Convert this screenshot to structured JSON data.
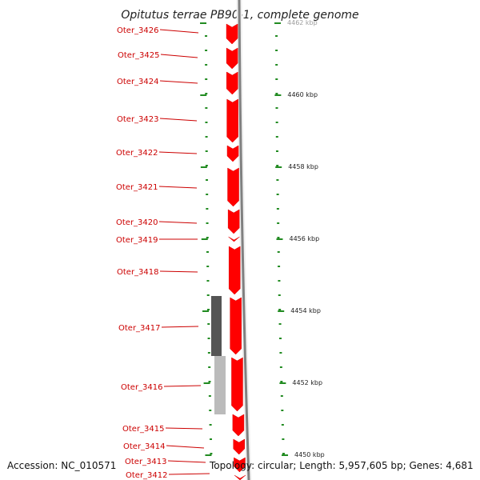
{
  "title": "Opitutus terrae PB90-1, complete genome",
  "footer": {
    "accession": "Accession: NC_010571",
    "topology": "Topology: circular; Length: 5,957,605 bp; Genes: 4,681"
  },
  "colors": {
    "gene": "#ff0000",
    "gene_label": "#cc0000",
    "tick": "#228b22",
    "backbone": "#808080",
    "gc_dark": "#555555",
    "gc_light": "#bbbbbb"
  },
  "genes": [
    {
      "name": "Oter_3426"
    },
    {
      "name": "Oter_3425"
    },
    {
      "name": "Oter_3424"
    },
    {
      "name": "Oter_3423"
    },
    {
      "name": "Oter_3422"
    },
    {
      "name": "Oter_3421"
    },
    {
      "name": "Oter_3420"
    },
    {
      "name": "Oter_3419"
    },
    {
      "name": "Oter_3418"
    },
    {
      "name": "Oter_3417"
    },
    {
      "name": "Oter_3416"
    },
    {
      "name": "Oter_3415"
    },
    {
      "name": "Oter_3414"
    },
    {
      "name": "Oter_3413"
    },
    {
      "name": "Oter_3412"
    }
  ],
  "kbp_ticks": [
    "4462 kbp",
    "4460 kbp",
    "4458 kbp",
    "4456 kbp",
    "4454 kbp",
    "4452 kbp",
    "4450 kbp"
  ]
}
